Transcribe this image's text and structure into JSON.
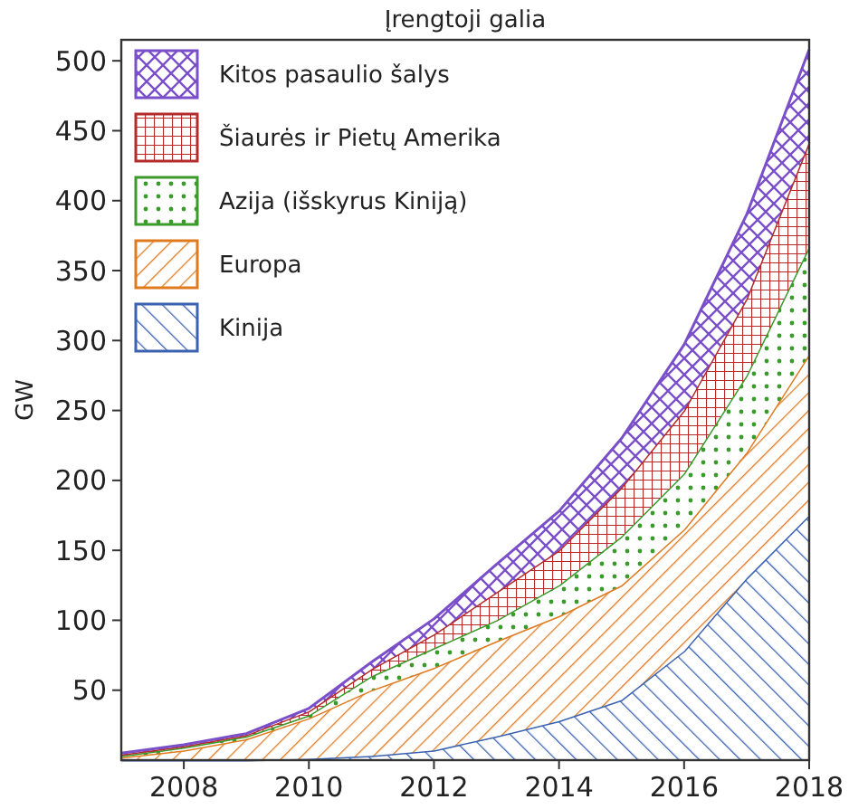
{
  "chart_data": {
    "type": "area",
    "title": "Įrengtoji galia",
    "ylabel": "GW",
    "stacked": true,
    "legend": "top left",
    "grid": false,
    "x": [
      2007,
      2008,
      2009,
      2010,
      2011,
      2012,
      2013,
      2014,
      2015,
      2016,
      2017,
      2018
    ],
    "xlim": [
      2007,
      2018
    ],
    "xticks": [
      2008,
      2010,
      2012,
      2014,
      2016,
      2018
    ],
    "ylim": [
      0,
      515
    ],
    "yticks": [
      50,
      100,
      150,
      200,
      250,
      300,
      350,
      400,
      450,
      500
    ],
    "series": [
      {
        "name": "Kinija",
        "color": "#3a62b0",
        "values": [
          0,
          0,
          0,
          1,
          3,
          7,
          17,
          28,
          43,
          78,
          130,
          175
        ]
      },
      {
        "name": "Europa",
        "color": "#e07a1f",
        "values": [
          2,
          7,
          15,
          29,
          47,
          59,
          68,
          75,
          82,
          87,
          90,
          115
        ]
      },
      {
        "name": "Azija (išskyrus Kiniją)",
        "color": "#3a9a2a",
        "values": [
          1,
          2,
          2,
          2,
          10,
          14,
          15,
          22,
          35,
          40,
          55,
          77
        ]
      },
      {
        "name": "Šiaurės ir Pietų Amerika",
        "color": "#b52a2a",
        "values": [
          1,
          1,
          1,
          3,
          5,
          10,
          20,
          25,
          35,
          45,
          55,
          75
        ]
      },
      {
        "name": "Kitos pasaulio šalys",
        "color": "#7a4fc9",
        "values": [
          1,
          1,
          1,
          2,
          5,
          11,
          20,
          28,
          35,
          47,
          60,
          66
        ]
      }
    ]
  }
}
